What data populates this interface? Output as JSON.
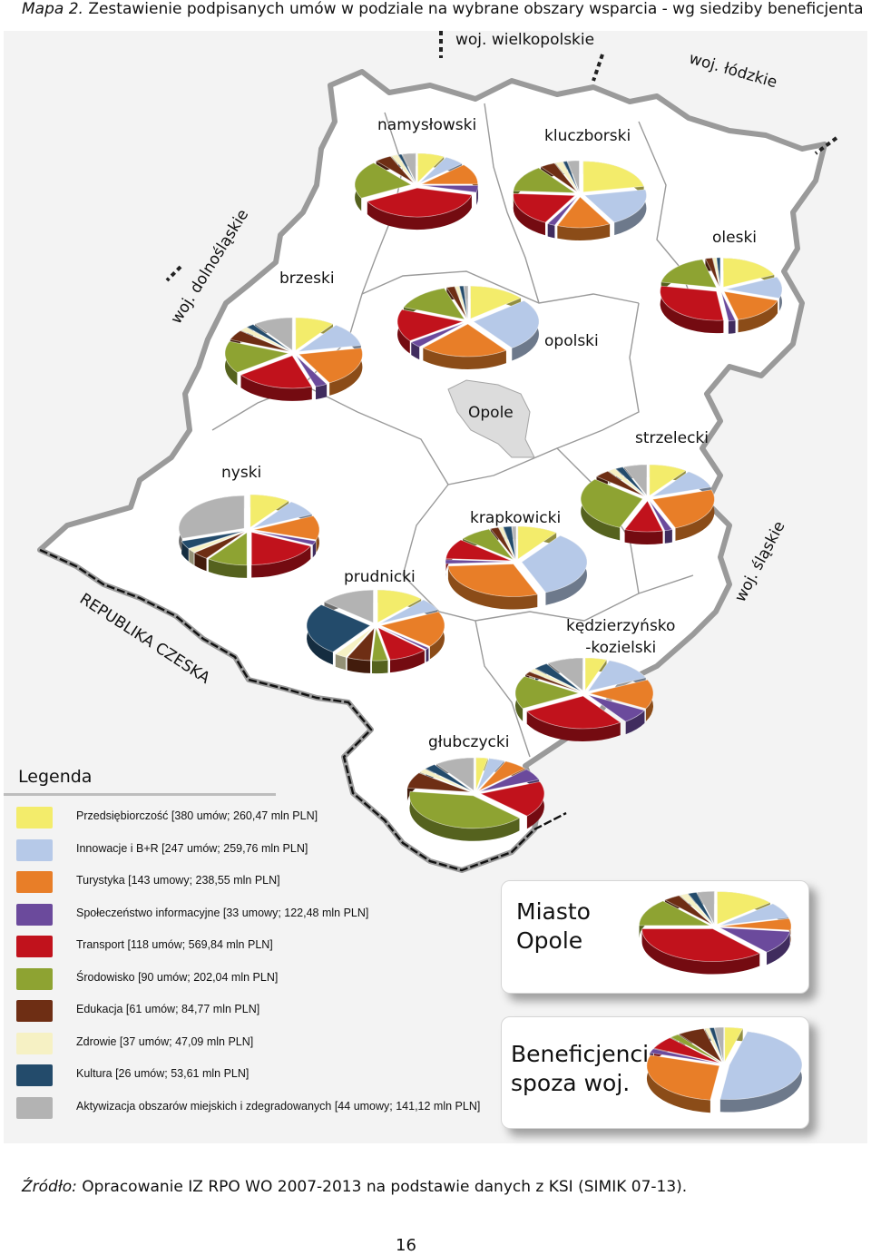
{
  "title": {
    "prefix": "Mapa 2.",
    "text": "Zestawienie podpisanych umów w podziale na wybrane obszary wsparcia - wg siedziby beneficjenta"
  },
  "map": {
    "region_labels": {
      "wielkopolskie": "woj. wielkopolskie",
      "lodzkie": "woj. łódzkie",
      "dolnoslaskie": "woj. dolnośląskie",
      "slaskie": "woj. śląskie",
      "czechia": "REPUBLIKA CZESKA"
    },
    "districts": {
      "namyslowski": "namysłowski",
      "kluczborski": "kluczborski",
      "oleski": "oleski",
      "brzeski": "brzeski",
      "opolski": "opolski",
      "opole": "Opole",
      "strzelecki": "strzelecki",
      "nyski": "nyski",
      "krapkowicki": "krapkowicki",
      "prudnicki": "prudnicki",
      "kedzierzynsko": "kędzierzyńsko\n-kozielski",
      "glubczycki": "głubczycki"
    },
    "colors": {
      "border": "#8c8c8c",
      "region_fill": "#ffffff",
      "background": "#f2f2f2",
      "opole_city": "#dcdcdc"
    }
  },
  "legend": {
    "title": "Legenda",
    "items": [
      {
        "label": "Przedsiębiorczość [380 umów; 260,47 mln PLN]",
        "color": "#f3ec6b"
      },
      {
        "label": "Innowacje i B+R [247 umów; 259,76 mln PLN]",
        "color": "#b6c9e8"
      },
      {
        "label": "Turystyka [143 umowy; 238,55 mln PLN]",
        "color": "#e87e28"
      },
      {
        "label": "Społeczeństwo informacyjne [33 umowy; 122,48 mln PLN]",
        "color": "#6b4a9c"
      },
      {
        "label": "Transport [118 umów; 569,84 mln PLN]",
        "color": "#c1121c"
      },
      {
        "label": "Środowisko [90 umów; 202,04 mln PLN]",
        "color": "#8ea332"
      },
      {
        "label": "Edukacja [61 umów; 84,77 mln PLN]",
        "color": "#6e2e14"
      },
      {
        "label": "Zdrowie [37 umów; 47,09 mln PLN]",
        "color": "#f6f1c4"
      },
      {
        "label": "Kultura [26 umów; 53,61 mln PLN]",
        "color": "#234b6b"
      },
      {
        "label": "Aktywizacja obszarów miejskich i zdegradowanych [44 umowy; 141,12 mln PLN]",
        "color": "#b3b3b3"
      }
    ]
  },
  "boxes": {
    "miasto": "Miasto\nOpole",
    "spoza": "Beneficjenci\nspoza woj."
  },
  "source": {
    "prefix": "Źródło:",
    "text": "Opracowanie IZ RPO WO 2007-2013 na podstawie danych z KSI (SIMIK 07-13)."
  },
  "page_number": "16"
}
